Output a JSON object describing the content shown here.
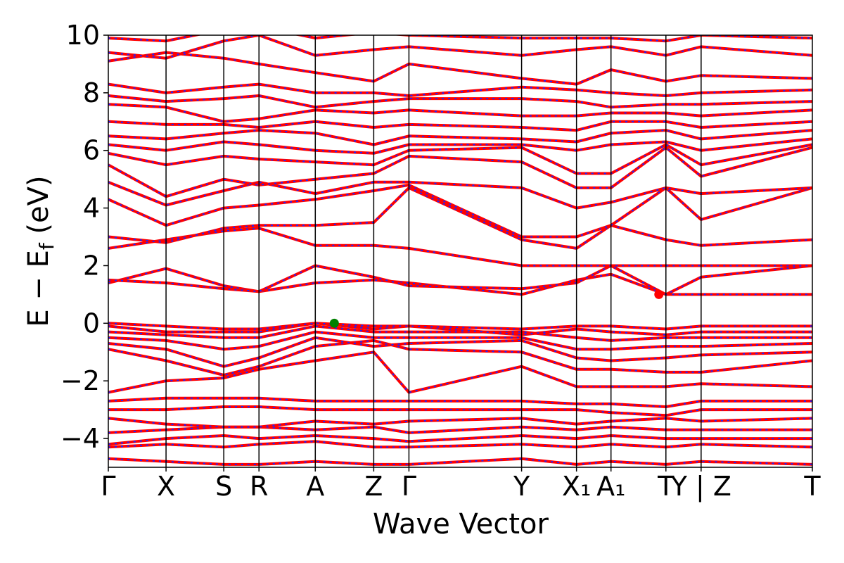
{
  "chart_data": {
    "type": "line",
    "title": "",
    "xlabel": "Wave Vector",
    "ylabel": "E − E_f (eV)",
    "ylabel_parts": {
      "main": "E − E",
      "sub": "f",
      "unit": " (eV)"
    },
    "ylim": [
      -5,
      10
    ],
    "yticks": [
      -4,
      -2,
      0,
      2,
      4,
      6,
      8,
      10
    ],
    "ytick_labels": [
      "−4",
      "−2",
      "0",
      "2",
      "4",
      "6",
      "8",
      "10"
    ],
    "grid": false,
    "legend": "none",
    "xlim": [
      0,
      1
    ],
    "kpoints": [
      {
        "x": 0.0,
        "label": "Γ"
      },
      {
        "x": 0.082,
        "label": "X"
      },
      {
        "x": 0.164,
        "label": "S"
      },
      {
        "x": 0.214,
        "label": "R"
      },
      {
        "x": 0.294,
        "label": "A"
      },
      {
        "x": 0.377,
        "label": "Z"
      },
      {
        "x": 0.427,
        "label": "Γ"
      },
      {
        "x": 0.587,
        "label": "Y"
      },
      {
        "x": 0.665,
        "label": "X₁"
      },
      {
        "x": 0.714,
        "label": "A₁"
      },
      {
        "x": 0.792,
        "label": "T"
      },
      {
        "x": 0.842,
        "label": "Y | Z"
      },
      {
        "x": 1.0,
        "label": "T"
      }
    ],
    "series_colors": {
      "band_solid": "#ff0000",
      "band_dashed": "#1e22ff",
      "vbm_marker": "#008000",
      "cbm_marker": "#ff0000",
      "kpath_lines": "#000000"
    },
    "markers": [
      {
        "name": "VBM",
        "x": 0.321,
        "y": 0.0,
        "color": "#008000"
      },
      {
        "name": "CBM",
        "x": 0.782,
        "y": 1.0,
        "color": "#ff0000"
      }
    ],
    "bands": [
      [
        -4.7,
        -4.8,
        -4.9,
        -4.9,
        -4.8,
        -4.9,
        -4.9,
        -4.7,
        -4.9,
        -4.8,
        -4.9,
        -4.8,
        -4.9
      ],
      [
        -4.3,
        -4.2,
        -4.3,
        -4.2,
        -4.1,
        -4.3,
        -4.3,
        -4.2,
        -4.3,
        -4.2,
        -4.3,
        -4.2,
        -4.3
      ],
      [
        -4.2,
        -4.0,
        -3.9,
        -4.0,
        -3.9,
        -4.0,
        -4.1,
        -3.9,
        -4.0,
        -3.9,
        -4.0,
        -4.0,
        -4.0
      ],
      [
        -3.8,
        -3.7,
        -3.6,
        -3.6,
        -3.7,
        -3.6,
        -3.8,
        -3.6,
        -3.7,
        -3.6,
        -3.7,
        -3.7,
        -3.7
      ],
      [
        -3.3,
        -3.5,
        -3.6,
        -3.6,
        -3.4,
        -3.5,
        -3.4,
        -3.3,
        -3.5,
        -3.4,
        -3.3,
        -3.4,
        -3.3
      ],
      [
        -3.0,
        -3.0,
        -2.9,
        -2.9,
        -3.0,
        -3.0,
        -3.0,
        -3.0,
        -3.0,
        -3.1,
        -3.2,
        -3.0,
        -3.0
      ],
      [
        -2.7,
        -2.6,
        -2.6,
        -2.6,
        -2.7,
        -2.7,
        -2.7,
        -2.7,
        -2.8,
        -2.8,
        -2.9,
        -2.7,
        -2.7
      ],
      [
        -2.4,
        -2.0,
        -1.9,
        -1.6,
        -1.3,
        -1.0,
        -2.4,
        -1.5,
        -2.2,
        -2.2,
        -2.2,
        -2.1,
        -2.2
      ],
      [
        -0.9,
        -1.3,
        -1.8,
        -1.5,
        -0.8,
        -0.6,
        -0.9,
        -1.0,
        -1.6,
        -1.6,
        -1.7,
        -1.7,
        -1.3
      ],
      [
        -0.7,
        -0.9,
        -1.5,
        -1.2,
        -0.5,
        -0.8,
        -0.7,
        -0.6,
        -1.2,
        -1.3,
        -1.2,
        -1.1,
        -1.0
      ],
      [
        -0.5,
        -0.6,
        -0.9,
        -0.8,
        -0.3,
        -0.5,
        -0.5,
        -0.5,
        -0.9,
        -0.9,
        -0.8,
        -0.8,
        -0.7
      ],
      [
        -0.3,
        -0.4,
        -0.5,
        -0.5,
        -0.1,
        -0.3,
        -0.3,
        -0.3,
        -0.5,
        -0.6,
        -0.5,
        -0.5,
        -0.5
      ],
      [
        -0.1,
        -0.3,
        -0.3,
        -0.3,
        0.0,
        -0.2,
        -0.1,
        -0.4,
        -0.2,
        -0.3,
        -0.4,
        -0.3,
        -0.3
      ],
      [
        0.0,
        -0.1,
        -0.2,
        -0.2,
        0.0,
        -0.1,
        -0.1,
        -0.2,
        -0.1,
        -0.1,
        -0.2,
        -0.1,
        -0.1
      ],
      [
        1.4,
        1.9,
        1.3,
        1.1,
        1.4,
        1.5,
        1.4,
        1.0,
        1.5,
        1.7,
        1.0,
        1.0,
        1.0
      ],
      [
        1.5,
        1.4,
        1.2,
        1.1,
        2.0,
        1.6,
        1.3,
        1.2,
        1.4,
        2.0,
        1.0,
        1.6,
        2.0
      ],
      [
        2.6,
        2.9,
        3.2,
        3.3,
        2.7,
        2.7,
        2.6,
        2.0,
        2.0,
        2.0,
        2.0,
        2.0,
        2.0
      ],
      [
        3.0,
        2.8,
        3.3,
        3.4,
        3.4,
        3.5,
        4.7,
        2.9,
        2.6,
        3.4,
        2.9,
        2.7,
        2.9
      ],
      [
        4.3,
        3.4,
        4.0,
        4.1,
        4.3,
        4.6,
        4.8,
        3.0,
        3.0,
        3.4,
        4.7,
        3.6,
        4.7
      ],
      [
        4.9,
        4.1,
        4.6,
        4.9,
        4.5,
        4.9,
        4.9,
        4.7,
        4.0,
        4.2,
        4.7,
        4.5,
        4.7
      ],
      [
        5.5,
        4.4,
        5.0,
        4.8,
        5.0,
        5.2,
        5.8,
        5.6,
        4.7,
        4.7,
        6.1,
        5.1,
        6.1
      ],
      [
        5.9,
        5.5,
        5.8,
        5.7,
        5.6,
        5.5,
        6.0,
        6.1,
        5.2,
        5.2,
        6.2,
        5.5,
        6.2
      ],
      [
        6.2,
        6.0,
        6.3,
        6.2,
        6.0,
        5.9,
        6.2,
        6.2,
        6.0,
        6.2,
        6.3,
        6.0,
        6.4
      ],
      [
        6.5,
        6.4,
        6.6,
        6.7,
        6.6,
        6.2,
        6.5,
        6.4,
        6.3,
        6.6,
        6.7,
        6.4,
        6.7
      ],
      [
        7.0,
        6.9,
        6.9,
        6.8,
        7.0,
        6.8,
        6.9,
        6.8,
        6.7,
        7.0,
        7.0,
        6.8,
        7.0
      ],
      [
        7.6,
        7.5,
        7.0,
        7.1,
        7.4,
        7.3,
        7.4,
        7.2,
        7.2,
        7.3,
        7.3,
        7.2,
        7.4
      ],
      [
        7.9,
        7.7,
        7.8,
        7.9,
        7.5,
        7.7,
        7.8,
        7.8,
        7.7,
        7.5,
        7.6,
        7.6,
        7.7
      ],
      [
        8.3,
        8.0,
        8.2,
        8.3,
        8.0,
        8.0,
        7.9,
        8.2,
        8.1,
        8.0,
        7.9,
        8.0,
        8.1
      ],
      [
        9.1,
        9.4,
        9.2,
        9.0,
        8.7,
        8.4,
        9.0,
        8.5,
        8.3,
        8.8,
        8.4,
        8.6,
        8.5
      ],
      [
        9.4,
        9.2,
        9.8,
        10.0,
        9.3,
        9.5,
        9.6,
        9.3,
        9.5,
        9.6,
        9.3,
        9.6,
        9.3
      ],
      [
        9.9,
        9.8,
        10.2,
        10.3,
        9.9,
        10.1,
        10.0,
        9.9,
        9.9,
        9.9,
        9.8,
        10.0,
        9.9
      ]
    ]
  }
}
